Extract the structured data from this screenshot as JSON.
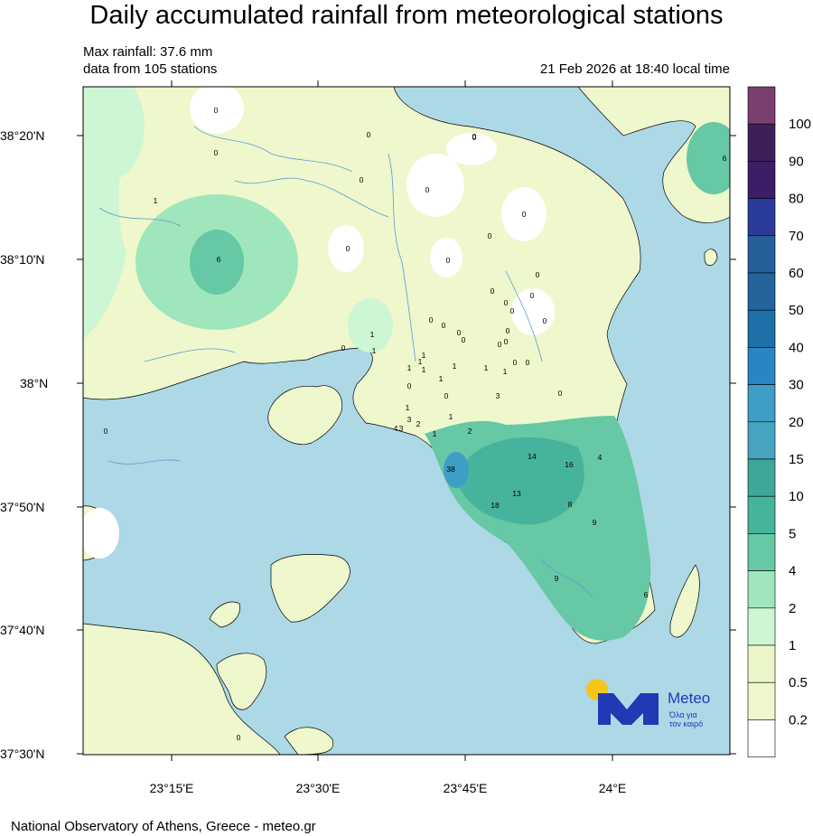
{
  "header": {
    "title": "Daily accumulated rainfall from meteorological stations",
    "max_rainfall": "Max rainfall: 37.6 mm",
    "stations": "data from 105 stations",
    "timestamp": "21 Feb 2026 at 18:40 local time"
  },
  "footer": {
    "credit": "National Observatory of Athens, Greece - meteo.gr"
  },
  "axes": {
    "lat_labels": [
      "38°20'N",
      "38°10'N",
      "38°N",
      "37°50'N",
      "37°40'N",
      "37°30'N"
    ],
    "lon_labels": [
      "23°15'E",
      "23°30'E",
      "23°45'E",
      "24°E"
    ]
  },
  "legend": {
    "labels": [
      "100",
      "90",
      "80",
      "70",
      "60",
      "50",
      "40",
      "30",
      "20",
      "15",
      "10",
      "5",
      "4",
      "2",
      "1",
      "0.5",
      "0.2"
    ],
    "colors": [
      "#7b3f6e",
      "#3f1f5a",
      "#3b1e66",
      "#2a3b9a",
      "#26609a",
      "#23649c",
      "#1f6fa8",
      "#2a86c2",
      "#3f9ec6",
      "#46a4c0",
      "#3ea79a",
      "#46b49c",
      "#66c8a4",
      "#a0e6bc",
      "#ccf6d4",
      "#eaf6c8",
      "#eef8cc",
      "#ffffff"
    ]
  },
  "map_colors": {
    "sea": "#add8e6",
    "land_low": "#eef8cc",
    "land_light_green": "#ccf6d4",
    "land_green": "#a0e6bc",
    "land_teal": "#66c8a4",
    "land_dark_teal": "#46b49c",
    "hot_spot": "#3f9ec6",
    "river": "#5b9bd5"
  },
  "station_values": [
    "0",
    "0",
    "0",
    "0",
    "0",
    "0",
    "1",
    "6",
    "0",
    "0",
    "0",
    "0",
    "0",
    "0",
    "0",
    "0",
    "0",
    "1",
    "1",
    "0",
    "0",
    "0",
    "0",
    "0",
    "0",
    "1",
    "1",
    "1",
    "1",
    "1",
    "0",
    "0",
    "0",
    "1",
    "1",
    "3",
    "0",
    "0",
    "1",
    "0",
    "1",
    "3",
    "2",
    "4",
    "3",
    "1",
    "2",
    "0",
    "1",
    "0",
    "0",
    "38",
    "14",
    "16",
    "4",
    "13",
    "18",
    "8",
    "9",
    "9",
    "6",
    "0",
    "0",
    "6"
  ],
  "logo": {
    "brand": "Meteo",
    "tagline_line1": "Όλα για",
    "tagline_line2": "τον καιρό"
  }
}
